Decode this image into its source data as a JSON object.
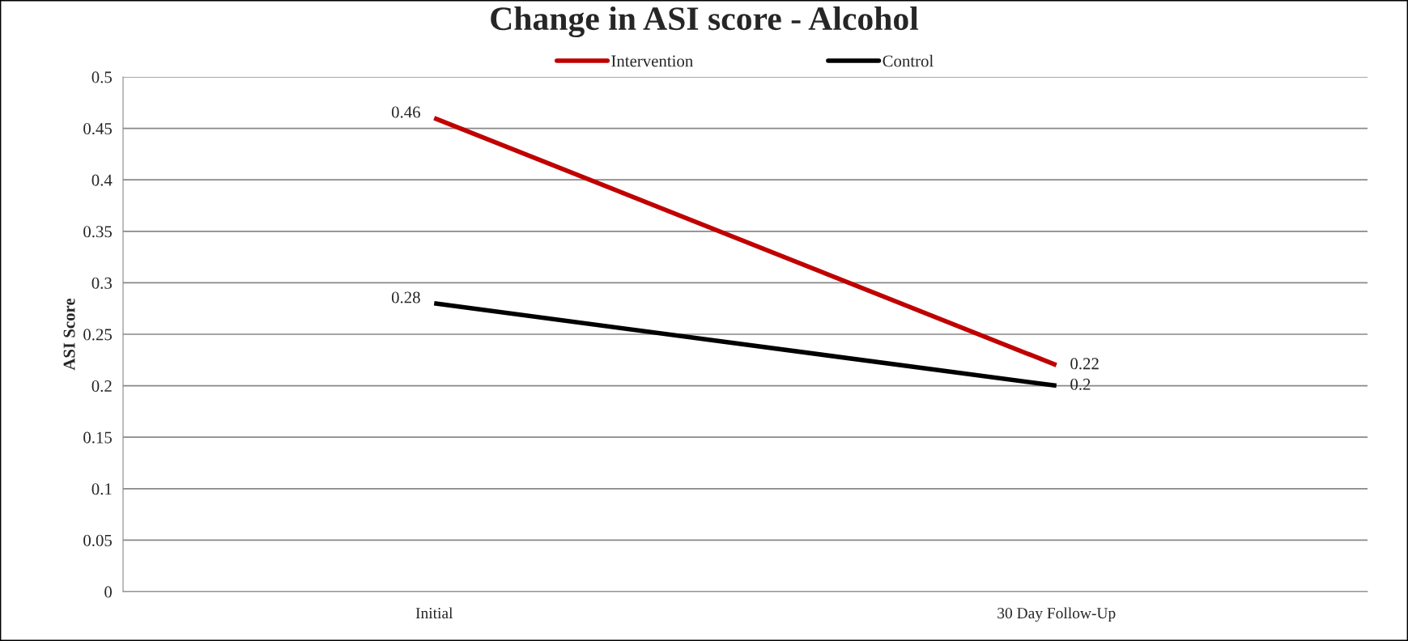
{
  "chart_data": {
    "type": "line",
    "title": "Change in ASI score - Alcohol",
    "ylabel": "ASI Score",
    "categories": [
      "Initial",
      "30 Day Follow-Up"
    ],
    "series": [
      {
        "name": "Intervention",
        "color": "#c00000",
        "values": [
          0.46,
          0.22
        ]
      },
      {
        "name": "Control",
        "color": "#000000",
        "values": [
          0.28,
          0.2
        ]
      }
    ],
    "ylim": [
      0,
      0.5
    ],
    "yticks": [
      0,
      0.05,
      0.1,
      0.15,
      0.2,
      0.25,
      0.3,
      0.35,
      0.4,
      0.45,
      0.5
    ],
    "grid": "y",
    "legend": "top",
    "data_labels": true,
    "marker": "none",
    "line_style": "solid"
  }
}
